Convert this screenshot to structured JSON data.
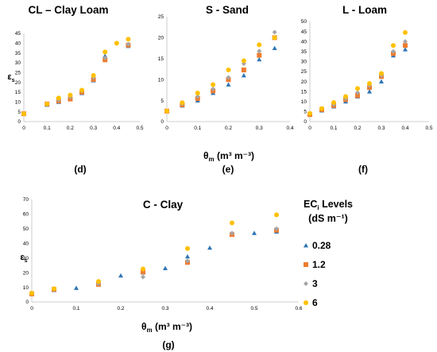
{
  "series_styles": [
    {
      "name": "0.28",
      "marker": "triangle",
      "color": "#2E75B6"
    },
    {
      "name": "1.2",
      "marker": "square",
      "color": "#ED7D31"
    },
    {
      "name": "3",
      "marker": "diamond",
      "color": "#A5A5A5"
    },
    {
      "name": "6",
      "marker": "circle",
      "color": "#FFC000"
    }
  ],
  "legend": {
    "title": "EC",
    "title_sub": "i",
    "title_rest": " Levels",
    "units": "(dS m⁻¹)",
    "items": [
      "0.28",
      "1.2",
      "3",
      "6"
    ]
  },
  "shared_xlabel": "θm  (m³ m⁻³)",
  "chart_data": [
    {
      "id": "d",
      "type": "scatter",
      "title": "CL – Clay Loam",
      "panel_label": "(d)",
      "xlabel": "",
      "ylabel": "εs",
      "xlim": [
        0,
        0.5
      ],
      "xticks": [
        "0",
        "0.1",
        "0.2",
        "0.3",
        "0.4",
        "0.5"
      ],
      "ylim": [
        0,
        45
      ],
      "yticks": [
        "0",
        "5",
        "10",
        "15",
        "20",
        "25",
        "30",
        "35",
        "40",
        "45"
      ],
      "series": [
        {
          "name": "0.28",
          "x": [
            0,
            0.1,
            0.15,
            0.2,
            0.25,
            0.3,
            0.35,
            0.45
          ],
          "y": [
            4,
            8.5,
            10,
            11.5,
            14.5,
            21,
            33.5,
            38.5
          ]
        },
        {
          "name": "1.2",
          "x": [
            0,
            0.1,
            0.15,
            0.2,
            0.25,
            0.3,
            0.35,
            0.45
          ],
          "y": [
            4,
            9,
            10.5,
            11.5,
            15,
            21.5,
            31.5,
            39
          ]
        },
        {
          "name": "3",
          "x": [
            0,
            0.1,
            0.15,
            0.2,
            0.25,
            0.3,
            0.35,
            0.45
          ],
          "y": [
            4,
            9,
            11,
            12.5,
            15.5,
            22.5,
            32.5,
            39.5
          ]
        },
        {
          "name": "6",
          "x": [
            0,
            0.1,
            0.15,
            0.2,
            0.25,
            0.3,
            0.35,
            0.4,
            0.45
          ],
          "y": [
            4,
            9,
            12,
            13.5,
            16,
            23.5,
            35.5,
            40,
            42
          ]
        }
      ]
    },
    {
      "id": "e",
      "type": "scatter",
      "title": "S - Sand",
      "panel_label": "(e)",
      "xlabel": "θm  (m³ m⁻³)",
      "ylabel": "",
      "xlim": [
        0,
        0.4
      ],
      "xticks": [
        "0",
        "0.1",
        "0.2",
        "0.3",
        "0.4"
      ],
      "ylim": [
        0,
        25
      ],
      "yticks": [
        "0",
        "5",
        "10",
        "15",
        "20",
        "25"
      ],
      "series": [
        {
          "name": "0.28",
          "x": [
            0,
            0.05,
            0.1,
            0.15,
            0.2,
            0.25,
            0.3,
            0.35
          ],
          "y": [
            2.5,
            3.8,
            5,
            6.8,
            8.8,
            11,
            14.8,
            17.5
          ]
        },
        {
          "name": "1.2",
          "x": [
            0,
            0.05,
            0.1,
            0.15,
            0.2,
            0.25,
            0.3,
            0.35
          ],
          "y": [
            2.5,
            4,
            5.5,
            7.3,
            10,
            12.3,
            15.8,
            20
          ]
        },
        {
          "name": "3",
          "x": [
            0,
            0.05,
            0.1,
            0.15,
            0.2,
            0.25,
            0.3,
            0.35
          ],
          "y": [
            2.5,
            4.2,
            6,
            7.8,
            10.5,
            13.8,
            16.8,
            21.3
          ]
        },
        {
          "name": "6",
          "x": [
            0,
            0.05,
            0.1,
            0.15,
            0.2,
            0.25,
            0.3,
            0.35
          ],
          "y": [
            2.5,
            4.5,
            6.8,
            8.8,
            12.3,
            14.5,
            18.3,
            20
          ]
        }
      ]
    },
    {
      "id": "f",
      "type": "scatter",
      "title": "L - Loam",
      "panel_label": "(f)",
      "xlabel": "",
      "ylabel": "",
      "xlim": [
        0,
        0.5
      ],
      "xticks": [
        "0",
        "0.1",
        "0.2",
        "0.3",
        "0.4",
        "0.5"
      ],
      "ylim": [
        0,
        50
      ],
      "yticks": [
        "0",
        "5",
        "10",
        "15",
        "20",
        "25",
        "30",
        "35",
        "40",
        "45",
        "50"
      ],
      "series": [
        {
          "name": "0.28",
          "x": [
            0,
            0.05,
            0.1,
            0.15,
            0.2,
            0.25,
            0.3,
            0.35,
            0.4
          ],
          "y": [
            3.5,
            5.5,
            7.5,
            10,
            12.5,
            15,
            20,
            33,
            36
          ]
        },
        {
          "name": "1.2",
          "x": [
            0,
            0.05,
            0.1,
            0.15,
            0.2,
            0.25,
            0.3,
            0.35,
            0.4
          ],
          "y": [
            3.5,
            6,
            8,
            11,
            13,
            17,
            22.5,
            34,
            38
          ]
        },
        {
          "name": "3",
          "x": [
            0,
            0.05,
            0.1,
            0.15,
            0.2,
            0.25,
            0.3,
            0.35,
            0.4
          ],
          "y": [
            4,
            6.5,
            8.5,
            11.5,
            14.5,
            18,
            23,
            35,
            40
          ]
        },
        {
          "name": "6",
          "x": [
            0,
            0.05,
            0.1,
            0.15,
            0.2,
            0.25,
            0.3,
            0.35,
            0.4
          ],
          "y": [
            4,
            6.5,
            9.5,
            12.5,
            16.5,
            19,
            24,
            38,
            44.5
          ]
        }
      ]
    },
    {
      "id": "g",
      "type": "scatter",
      "title": "C - Clay",
      "panel_label": "(g)",
      "xlabel": "θm (m³ m⁻³)",
      "ylabel": "εs",
      "xlim": [
        0,
        0.6
      ],
      "xticks": [
        "0",
        "0.1",
        "0.2",
        "0.3",
        "0.4",
        "0.5",
        "0.6"
      ],
      "ylim": [
        0,
        70
      ],
      "yticks": [
        "0",
        "10",
        "20",
        "30",
        "40",
        "50",
        "60",
        "70"
      ],
      "series": [
        {
          "name": "0.28",
          "x": [
            0,
            0.05,
            0.1,
            0.15,
            0.2,
            0.25,
            0.3,
            0.35,
            0.4,
            0.45,
            0.5,
            0.55
          ],
          "y": [
            5.5,
            8,
            9.5,
            13,
            18,
            20,
            23,
            31,
            37,
            47,
            47,
            48
          ]
        },
        {
          "name": "1.2",
          "x": [
            0,
            0.05,
            0.15,
            0.25,
            0.35,
            0.45,
            0.55
          ],
          "y": [
            5.5,
            8.5,
            12,
            20.5,
            27,
            46,
            49
          ]
        },
        {
          "name": "3",
          "x": [
            0,
            0.05,
            0.15,
            0.25,
            0.35,
            0.45,
            0.55
          ],
          "y": [
            6,
            8.5,
            12.5,
            17,
            28,
            47,
            50
          ]
        },
        {
          "name": "6",
          "x": [
            0,
            0.05,
            0.15,
            0.25,
            0.35,
            0.45,
            0.55
          ],
          "y": [
            6,
            9,
            14,
            22.5,
            36.5,
            54,
            59.5
          ]
        }
      ]
    }
  ]
}
